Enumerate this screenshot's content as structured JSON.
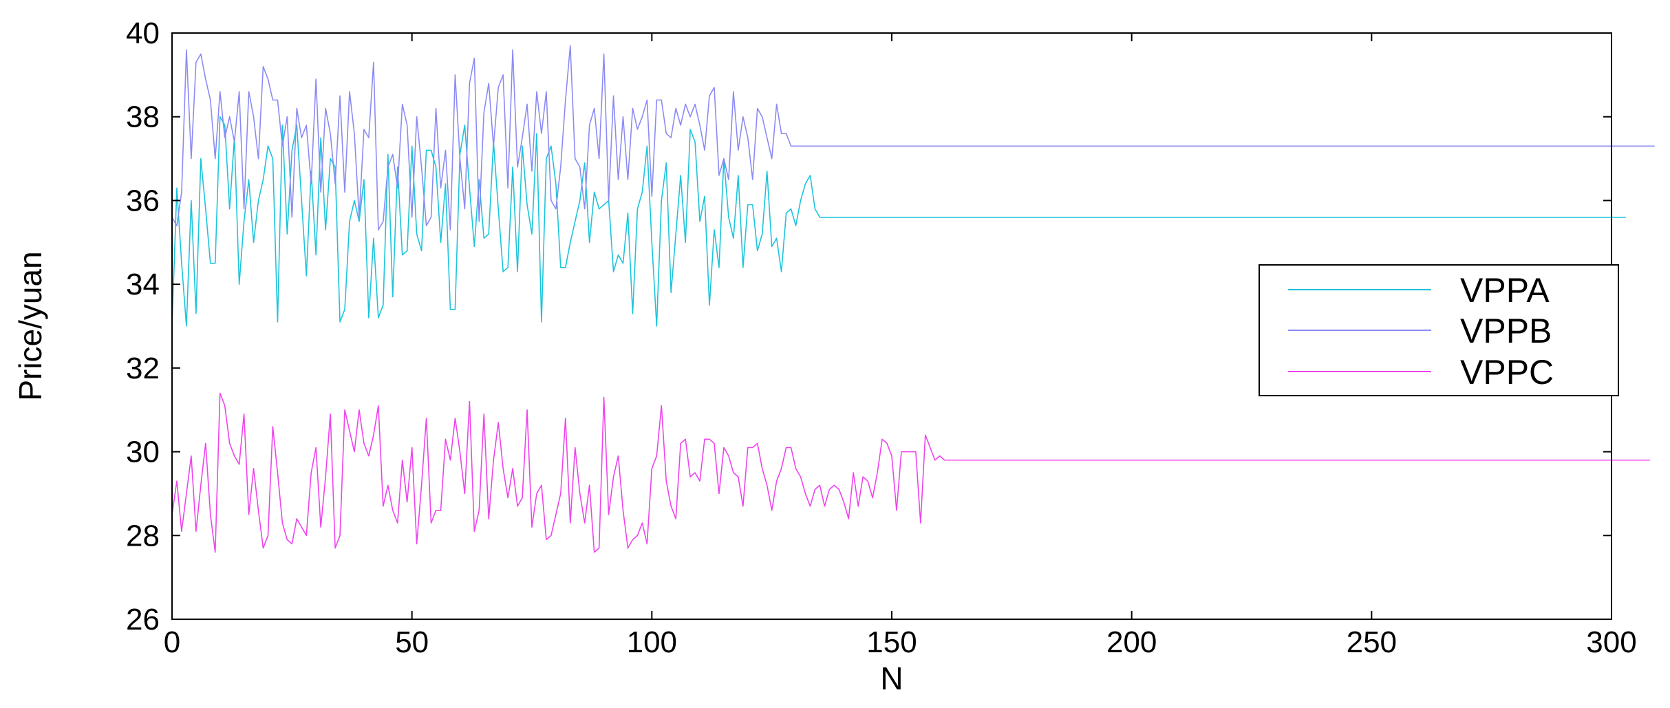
{
  "chart_data": {
    "type": "line",
    "title": "",
    "xlabel": "N",
    "ylabel": "Price/yuan",
    "xlim": [
      0,
      300
    ],
    "ylim": [
      26,
      40
    ],
    "xticks": [
      "0",
      "50",
      "100",
      "150",
      "200",
      "250",
      "300"
    ],
    "yticks": [
      "26",
      "28",
      "30",
      "32",
      "34",
      "36",
      "38",
      "40"
    ],
    "grid": false,
    "legend_position": "right",
    "series": [
      {
        "name": "VPPA",
        "color": "#1cc4dc",
        "values": [
          33.0,
          36.3,
          34.5,
          33.0,
          36.0,
          33.3,
          37.0,
          35.8,
          34.5,
          34.5,
          38.0,
          37.8,
          35.8,
          37.5,
          34.0,
          35.5,
          36.5,
          35.0,
          36.0,
          36.5,
          37.3,
          37.0,
          33.1,
          37.8,
          35.2,
          37.2,
          37.8,
          36.0,
          34.2,
          36.7,
          34.7,
          37.5,
          35.3,
          37.0,
          36.8,
          33.1,
          33.4,
          35.5,
          36.0,
          35.5,
          36.5,
          33.2,
          35.1,
          33.2,
          33.5,
          37.1,
          33.7,
          36.8,
          34.7,
          34.8,
          37.3,
          35.2,
          34.8,
          37.2,
          37.2,
          36.8,
          35.0,
          36.4,
          33.4,
          33.4,
          37.1,
          37.8,
          36.3,
          34.9,
          36.5,
          35.1,
          35.2,
          37.4,
          35.8,
          34.3,
          34.4,
          36.8,
          34.3,
          37.3,
          35.9,
          35.2,
          37.6,
          33.1,
          37.0,
          37.3,
          36.4,
          34.4,
          34.4,
          35.0,
          35.5,
          36.0,
          36.9,
          35.0,
          36.2,
          35.8,
          35.9,
          36.0,
          34.3,
          34.7,
          34.5,
          35.7,
          33.3,
          35.8,
          36.2,
          37.3,
          35.0,
          33.0,
          36.0,
          36.9,
          33.8,
          35.2,
          36.6,
          35.0,
          37.7,
          37.4,
          35.5,
          36.1,
          33.5,
          35.3,
          34.4,
          37.0,
          35.6,
          35.1,
          36.6,
          34.4,
          35.9,
          35.9,
          34.8,
          35.2,
          36.7,
          34.9,
          35.1,
          34.3,
          35.7,
          35.8,
          35.4,
          36.0,
          36.4,
          36.6,
          35.8,
          35.6,
          35.6,
          35.6,
          35.6,
          35.6,
          35.6,
          35.6,
          35.6,
          35.6,
          35.6,
          35.6,
          35.6,
          35.6,
          35.6,
          35.6,
          35.6,
          35.6,
          35.6,
          35.6,
          35.6,
          35.6,
          35.6,
          35.6,
          35.6,
          35.6,
          35.6,
          35.6,
          35.6,
          35.6,
          35.6,
          35.6,
          35.6,
          35.6,
          35.6,
          35.6,
          35.6,
          35.6,
          35.6,
          35.6,
          35.6,
          35.6,
          35.6,
          35.6,
          35.6,
          35.6,
          35.6,
          35.6,
          35.6,
          35.6,
          35.6,
          35.6,
          35.6,
          35.6,
          35.6,
          35.6,
          35.6,
          35.6,
          35.6,
          35.6,
          35.6,
          35.6,
          35.6,
          35.6,
          35.6,
          35.6,
          35.6,
          35.6,
          35.6,
          35.6,
          35.6,
          35.6,
          35.6,
          35.6,
          35.6,
          35.6,
          35.6,
          35.6,
          35.6,
          35.6,
          35.6,
          35.6,
          35.6,
          35.6,
          35.6,
          35.6,
          35.6,
          35.6,
          35.6,
          35.6,
          35.6,
          35.6,
          35.6,
          35.6,
          35.6,
          35.6,
          35.6,
          35.6,
          35.6,
          35.6,
          35.6,
          35.6,
          35.6,
          35.6,
          35.6,
          35.6,
          35.6,
          35.6,
          35.6,
          35.6,
          35.6,
          35.6,
          35.6,
          35.6,
          35.6,
          35.6,
          35.6,
          35.6,
          35.6,
          35.6,
          35.6,
          35.6,
          35.6,
          35.6,
          35.6,
          35.6,
          35.6,
          35.6,
          35.6,
          35.6,
          35.6,
          35.6,
          35.6,
          35.6,
          35.6,
          35.6,
          35.6,
          35.6,
          35.6,
          35.6,
          35.6,
          35.6,
          35.6,
          35.6,
          35.6,
          35.6,
          35.6,
          35.6,
          35.6,
          35.6,
          35.6,
          35.6,
          35.6,
          35.6,
          35.6,
          35.6,
          35.6,
          35.6,
          35.6,
          35.6,
          35.6,
          35.6,
          35.6,
          35.6,
          35.6,
          35.6,
          35.6,
          35.6,
          35.6,
          35.6
        ]
      },
      {
        "name": "VPPB",
        "color": "#8b8bf5",
        "values": [
          35.6,
          35.4,
          36.2,
          39.6,
          37.0,
          39.3,
          39.5,
          38.9,
          38.4,
          37.0,
          38.6,
          37.5,
          38.0,
          37.4,
          38.6,
          35.8,
          38.6,
          38.0,
          37.0,
          39.2,
          38.9,
          38.4,
          38.4,
          37.3,
          38.0,
          35.6,
          38.2,
          37.5,
          37.8,
          36.4,
          38.9,
          36.2,
          38.2,
          37.6,
          36.4,
          38.5,
          36.2,
          38.6,
          37.6,
          35.6,
          37.7,
          37.5,
          39.3,
          35.3,
          35.5,
          36.8,
          37.1,
          36.3,
          38.3,
          37.8,
          35.6,
          38.0,
          36.8,
          35.4,
          35.6,
          38.2,
          36.3,
          37.2,
          35.3,
          39.0,
          37.0,
          35.8,
          38.8,
          39.4,
          35.5,
          38.1,
          38.8,
          37.3,
          38.7,
          39.0,
          36.3,
          39.6,
          36.8,
          37.5,
          38.3,
          36.7,
          38.6,
          37.6,
          38.6,
          36.0,
          35.8,
          36.8,
          38.4,
          39.7,
          37.0,
          36.8,
          35.8,
          37.8,
          38.2,
          37.0,
          39.5,
          36.0,
          38.5,
          36.5,
          38.0,
          36.5,
          38.2,
          37.7,
          38.0,
          38.4,
          36.1,
          38.4,
          38.4,
          37.6,
          37.5,
          38.2,
          37.8,
          38.3,
          38.0,
          38.3,
          37.8,
          37.2,
          38.5,
          38.7,
          36.6,
          37.0,
          36.5,
          38.6,
          37.2,
          38.0,
          37.5,
          36.5,
          38.2,
          38.0,
          37.5,
          37.0,
          38.3,
          37.6,
          37.6,
          37.3,
          37.3,
          37.3,
          37.3,
          37.3,
          37.3,
          37.3,
          37.3,
          37.3,
          37.3,
          37.3,
          37.3,
          37.3,
          37.3,
          37.3,
          37.3,
          37.3,
          37.3,
          37.3,
          37.3,
          37.3,
          37.3,
          37.3,
          37.3,
          37.3,
          37.3,
          37.3,
          37.3,
          37.3,
          37.3,
          37.3,
          37.3,
          37.3,
          37.3,
          37.3,
          37.3,
          37.3,
          37.3,
          37.3,
          37.3,
          37.3,
          37.3,
          37.3,
          37.3,
          37.3,
          37.3,
          37.3,
          37.3,
          37.3,
          37.3,
          37.3,
          37.3,
          37.3,
          37.3,
          37.3,
          37.3,
          37.3,
          37.3,
          37.3,
          37.3,
          37.3,
          37.3,
          37.3,
          37.3,
          37.3,
          37.3,
          37.3,
          37.3,
          37.3,
          37.3,
          37.3,
          37.3,
          37.3,
          37.3,
          37.3,
          37.3,
          37.3,
          37.3,
          37.3,
          37.3,
          37.3,
          37.3,
          37.3,
          37.3,
          37.3,
          37.3,
          37.3,
          37.3,
          37.3,
          37.3,
          37.3,
          37.3,
          37.3,
          37.3,
          37.3,
          37.3,
          37.3,
          37.3,
          37.3,
          37.3,
          37.3,
          37.3,
          37.3,
          37.3,
          37.3,
          37.3,
          37.3,
          37.3,
          37.3,
          37.3,
          37.3,
          37.3,
          37.3,
          37.3,
          37.3,
          37.3,
          37.3,
          37.3,
          37.3,
          37.3,
          37.3,
          37.3,
          37.3,
          37.3,
          37.3,
          37.3,
          37.3,
          37.3,
          37.3,
          37.3,
          37.3,
          37.3,
          37.3,
          37.3,
          37.3,
          37.3,
          37.3,
          37.3,
          37.3,
          37.3,
          37.3,
          37.3,
          37.3,
          37.3,
          37.3,
          37.3,
          37.3,
          37.3,
          37.3,
          37.3,
          37.3,
          37.3,
          37.3,
          37.3,
          37.3,
          37.3,
          37.3,
          37.3,
          37.3,
          37.3,
          37.3,
          37.3,
          37.3,
          37.3,
          37.3,
          37.3,
          37.3,
          37.3,
          37.3,
          37.3,
          37.3,
          37.3,
          37.3,
          37.3,
          37.3,
          37.3,
          37.3,
          37.3,
          37.3,
          37.3,
          37.3
        ]
      },
      {
        "name": "VPPC",
        "color": "#ee44ee",
        "values": [
          28.5,
          29.3,
          28.1,
          29.0,
          29.9,
          28.1,
          29.2,
          30.2,
          28.5,
          27.6,
          31.4,
          31.1,
          30.2,
          29.9,
          29.7,
          30.9,
          28.5,
          29.6,
          28.6,
          27.7,
          28.0,
          30.6,
          29.5,
          28.3,
          27.9,
          27.8,
          28.4,
          28.2,
          28.0,
          29.5,
          30.1,
          28.2,
          29.4,
          30.9,
          27.7,
          28.0,
          31.0,
          30.5,
          30.0,
          31.0,
          30.2,
          29.9,
          30.4,
          31.1,
          28.7,
          29.2,
          28.6,
          28.3,
          29.8,
          28.8,
          30.1,
          27.8,
          29.2,
          30.8,
          28.3,
          28.6,
          28.6,
          30.3,
          29.8,
          30.8,
          30.0,
          29.0,
          31.2,
          28.1,
          28.6,
          30.9,
          28.4,
          29.8,
          30.7,
          29.6,
          28.9,
          29.6,
          28.7,
          28.9,
          31.0,
          28.2,
          29.0,
          29.2,
          27.9,
          28.0,
          28.5,
          29.0,
          30.8,
          28.3,
          30.1,
          29.0,
          28.3,
          29.2,
          27.6,
          27.7,
          31.3,
          28.5,
          29.4,
          29.9,
          28.6,
          27.7,
          27.9,
          28.0,
          28.3,
          27.8,
          29.6,
          29.9,
          31.1,
          29.3,
          28.7,
          28.4,
          30.2,
          30.3,
          29.4,
          29.5,
          29.3,
          30.3,
          30.3,
          30.2,
          29.0,
          30.1,
          29.9,
          29.5,
          29.4,
          28.7,
          30.1,
          30.1,
          30.2,
          29.6,
          29.2,
          28.6,
          29.3,
          29.6,
          30.1,
          30.1,
          29.6,
          29.4,
          29.0,
          28.7,
          29.1,
          29.2,
          28.7,
          29.1,
          29.2,
          29.1,
          28.8,
          28.4,
          29.5,
          28.7,
          29.4,
          29.3,
          28.9,
          29.5,
          30.3,
          30.2,
          29.9,
          28.6,
          30.0,
          30.0,
          30.0,
          30.0,
          28.3,
          30.4,
          30.1,
          29.8,
          29.9,
          29.8,
          29.8,
          29.8,
          29.8,
          29.8,
          29.8,
          29.8,
          29.8,
          29.8,
          29.8,
          29.8,
          29.8,
          29.8,
          29.8,
          29.8,
          29.8,
          29.8,
          29.8,
          29.8,
          29.8,
          29.8,
          29.8,
          29.8,
          29.8,
          29.8,
          29.8,
          29.8,
          29.8,
          29.8,
          29.8,
          29.8,
          29.8,
          29.8,
          29.8,
          29.8,
          29.8,
          29.8,
          29.8,
          29.8,
          29.8,
          29.8,
          29.8,
          29.8,
          29.8,
          29.8,
          29.8,
          29.8,
          29.8,
          29.8,
          29.8,
          29.8,
          29.8,
          29.8,
          29.8,
          29.8,
          29.8,
          29.8,
          29.8,
          29.8,
          29.8,
          29.8,
          29.8,
          29.8,
          29.8,
          29.8,
          29.8,
          29.8,
          29.8,
          29.8,
          29.8,
          29.8,
          29.8,
          29.8,
          29.8,
          29.8,
          29.8,
          29.8,
          29.8,
          29.8,
          29.8,
          29.8,
          29.8,
          29.8,
          29.8,
          29.8,
          29.8,
          29.8,
          29.8,
          29.8,
          29.8,
          29.8,
          29.8,
          29.8,
          29.8,
          29.8,
          29.8,
          29.8,
          29.8,
          29.8,
          29.8,
          29.8,
          29.8,
          29.8,
          29.8,
          29.8,
          29.8,
          29.8,
          29.8,
          29.8,
          29.8,
          29.8,
          29.8,
          29.8,
          29.8,
          29.8,
          29.8,
          29.8,
          29.8,
          29.8,
          29.8,
          29.8,
          29.8,
          29.8,
          29.8,
          29.8,
          29.8,
          29.8,
          29.8,
          29.8,
          29.8,
          29.8,
          29.8,
          29.8,
          29.8,
          29.8,
          29.8,
          29.8,
          29.8,
          29.8,
          29.8,
          29.8,
          29.8,
          29.8,
          29.8,
          29.8,
          29.8,
          29.8,
          29.8
        ]
      }
    ]
  }
}
